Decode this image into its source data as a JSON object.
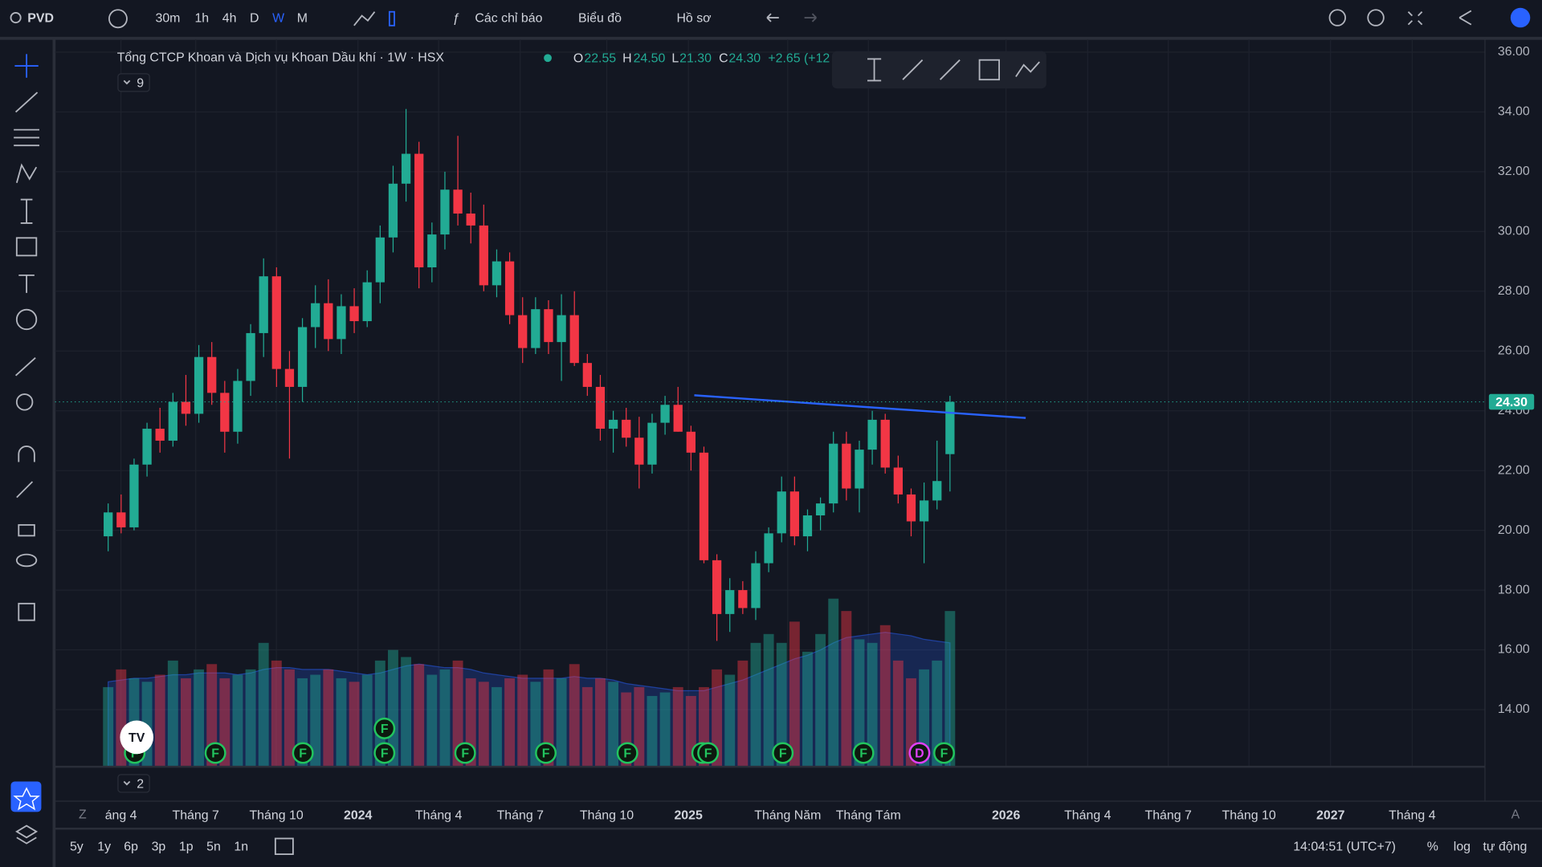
{
  "toolbar": {
    "symbol": "PVD",
    "intervals": [
      "30m",
      "1h",
      "4h",
      "D",
      "W",
      "M"
    ],
    "indicators": "Các chỉ báo",
    "chart_menu": "Biểu đồ",
    "profile": "Hồ sơ"
  },
  "chart_data": {
    "type": "candlestick",
    "title": "Tổng CTCP Khoan và Dịch vụ Khoan Dầu khí · 1W · HSX",
    "legend": {
      "o_label": "O",
      "o": "22.55",
      "h_label": "H",
      "h": "24.50",
      "l_label": "L",
      "l": "21.30",
      "c_label": "C",
      "c": "24.30",
      "change": "+2.65 (+12"
    },
    "indicator_count": "9",
    "pane_count": "2",
    "colors": {
      "up": "#22ab94",
      "down": "#f23645",
      "trendline": "#2962ff"
    },
    "open": [
      19.8,
      20.6,
      20.1,
      22.2,
      23.4,
      23.0,
      24.3,
      23.9,
      25.8,
      24.6,
      23.3,
      25.0,
      26.6,
      28.5,
      25.4,
      24.8,
      26.8,
      27.6,
      26.4,
      27.5,
      27.0,
      28.3,
      29.8,
      31.6,
      32.6,
      28.8,
      29.9,
      31.4,
      30.6,
      30.2,
      28.2,
      29.0,
      27.2,
      26.1,
      27.4,
      26.3,
      27.2,
      25.6,
      24.8,
      23.4,
      23.7,
      23.1,
      22.2,
      23.6,
      24.2,
      23.3,
      22.6,
      19.0,
      17.2,
      18.0,
      17.4,
      18.9,
      19.9,
      21.3,
      19.8,
      20.5,
      20.9,
      22.9,
      21.4,
      22.7,
      23.7,
      22.1,
      21.2,
      20.3,
      21.0,
      22.55
    ],
    "high": [
      20.9,
      21.2,
      22.4,
      23.6,
      24.1,
      24.6,
      25.2,
      26.2,
      26.3,
      25.0,
      25.4,
      26.9,
      29.1,
      28.8,
      26.0,
      27.1,
      28.2,
      28.4,
      27.9,
      28.1,
      28.7,
      30.2,
      32.2,
      34.1,
      33.0,
      30.3,
      32.0,
      33.2,
      31.3,
      30.9,
      29.4,
      29.3,
      27.8,
      27.8,
      27.7,
      27.9,
      28.0,
      25.9,
      25.2,
      24.0,
      24.1,
      23.8,
      23.9,
      24.5,
      24.8,
      23.5,
      22.8,
      19.2,
      18.4,
      18.3,
      19.3,
      20.1,
      21.8,
      21.8,
      20.7,
      21.1,
      23.3,
      23.3,
      23.0,
      24.0,
      23.9,
      22.5,
      21.4,
      21.6,
      23.0,
      24.5
    ],
    "low": [
      19.3,
      19.9,
      20.0,
      21.8,
      22.6,
      22.8,
      23.5,
      23.6,
      24.2,
      22.6,
      22.9,
      24.5,
      25.8,
      24.8,
      22.4,
      24.3,
      26.1,
      26.0,
      25.9,
      26.6,
      26.8,
      27.6,
      29.3,
      31.0,
      28.1,
      28.3,
      29.4,
      30.2,
      29.6,
      28.0,
      27.8,
      26.9,
      25.6,
      25.9,
      25.9,
      25.0,
      25.5,
      24.5,
      23.0,
      22.6,
      22.8,
      21.4,
      21.9,
      23.2,
      23.3,
      22.0,
      18.9,
      16.3,
      16.6,
      17.2,
      17.0,
      18.6,
      19.6,
      19.5,
      19.3,
      20.0,
      20.6,
      21.0,
      20.6,
      22.2,
      21.9,
      20.9,
      19.8,
      18.9,
      20.7,
      21.3
    ],
    "close": [
      20.6,
      20.1,
      22.2,
      23.4,
      23.0,
      24.3,
      23.9,
      25.8,
      24.6,
      23.3,
      25.0,
      26.6,
      28.5,
      25.4,
      24.8,
      26.8,
      27.6,
      26.4,
      27.5,
      27.0,
      28.3,
      29.8,
      31.6,
      32.6,
      28.8,
      29.9,
      31.4,
      30.6,
      30.2,
      28.2,
      29.0,
      27.2,
      26.1,
      27.4,
      26.3,
      27.2,
      25.6,
      24.8,
      23.4,
      23.7,
      23.1,
      22.2,
      23.6,
      24.2,
      23.3,
      22.6,
      19.0,
      17.2,
      18.0,
      17.4,
      18.9,
      19.9,
      21.3,
      19.8,
      20.5,
      20.9,
      22.9,
      21.4,
      22.7,
      23.7,
      22.1,
      21.2,
      20.3,
      21.0,
      21.65,
      24.3
    ],
    "volume": [
      45,
      55,
      50,
      48,
      52,
      60,
      50,
      55,
      58,
      50,
      52,
      55,
      70,
      60,
      55,
      50,
      52,
      55,
      50,
      48,
      52,
      60,
      66,
      62,
      58,
      52,
      55,
      60,
      50,
      48,
      45,
      50,
      52,
      48,
      55,
      50,
      58,
      45,
      50,
      48,
      42,
      45,
      40,
      42,
      45,
      40,
      45,
      55,
      52,
      60,
      70,
      75,
      70,
      82,
      65,
      75,
      95,
      88,
      72,
      70,
      80,
      60,
      50,
      55,
      60,
      88
    ],
    "volume_ma": [
      48,
      49,
      50,
      50,
      51,
      52,
      52,
      53,
      53,
      53,
      52,
      53,
      55,
      56,
      56,
      55,
      55,
      55,
      54,
      53,
      52,
      53,
      55,
      57,
      58,
      57,
      56,
      56,
      55,
      53,
      52,
      51,
      50,
      50,
      50,
      50,
      51,
      50,
      50,
      49,
      47,
      46,
      45,
      44,
      43,
      43,
      43,
      45,
      47,
      49,
      52,
      55,
      58,
      61,
      63,
      66,
      70,
      73,
      74,
      75,
      76,
      75,
      74,
      72,
      71,
      70
    ],
    "volume_lim": [
      0,
      100
    ],
    "ylim": [
      12.09,
      36.43
    ],
    "yticks": [
      {
        "value": 36,
        "label": "36.00"
      },
      {
        "value": 34,
        "label": "34.00"
      },
      {
        "value": 32,
        "label": "32.00"
      },
      {
        "value": 30,
        "label": "30.00"
      },
      {
        "value": 28,
        "label": "28.00"
      },
      {
        "value": 26,
        "label": "26.00"
      },
      {
        "value": 24,
        "label": "24.00"
      },
      {
        "value": 22,
        "label": "22.00"
      },
      {
        "value": 20,
        "label": "20.00"
      },
      {
        "value": 18,
        "label": "18.00"
      },
      {
        "value": 16,
        "label": "16.00"
      },
      {
        "value": 14,
        "label": "14.00"
      }
    ],
    "last_price": {
      "value": 24.3,
      "label": "24.30"
    },
    "trendline": [
      24.52,
      23.76
    ],
    "xtick_labels": [
      "áng 4",
      "Tháng 7",
      "Tháng 10",
      "2024",
      "Tháng 4",
      "Tháng 7",
      "Tháng 10",
      "2025",
      "Tháng Năm",
      "Tháng Tám",
      "2026",
      "Tháng 4",
      "Tháng 7",
      "Tháng 10",
      "2027",
      "Tháng 4"
    ],
    "events": [
      "F",
      "F",
      "F",
      "F",
      "F",
      "F",
      "F",
      "F",
      "F",
      "F",
      "F",
      "F",
      "D",
      "F"
    ],
    "axis_left_label": "Z",
    "axis_right_label": "A"
  },
  "bottom_bar": {
    "ranges": [
      "5y",
      "1y",
      "6p",
      "3p",
      "1p",
      "5n",
      "1n"
    ],
    "time": "14:04:51 (UTC+7)",
    "percent": "%",
    "log": "log",
    "auto": "tự động"
  }
}
